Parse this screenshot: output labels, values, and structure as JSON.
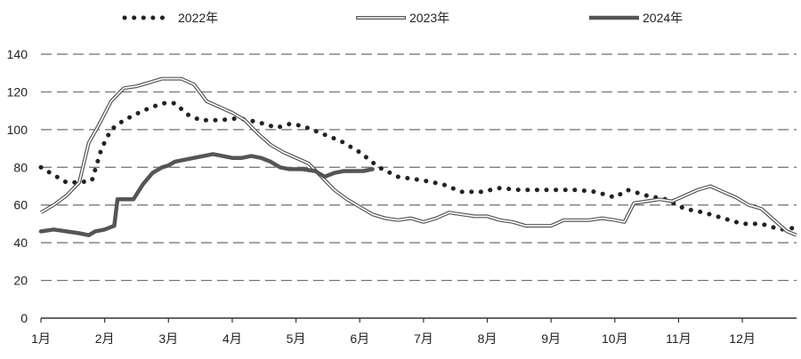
{
  "chart_data": {
    "type": "line",
    "ylim": [
      0,
      140
    ],
    "yticks": [
      "0",
      "20",
      "40",
      "60",
      "80",
      "100",
      "120",
      "140"
    ],
    "xlim": [
      1,
      12.85
    ],
    "xticks": [
      {
        "x": 1,
        "label": "1月"
      },
      {
        "x": 2,
        "label": "2月"
      },
      {
        "x": 3,
        "label": "3月"
      },
      {
        "x": 4,
        "label": "4月"
      },
      {
        "x": 5,
        "label": "5月"
      },
      {
        "x": 6,
        "label": "6月"
      },
      {
        "x": 7,
        "label": "7月"
      },
      {
        "x": 8,
        "label": "8月"
      },
      {
        "x": 9,
        "label": "9月"
      },
      {
        "x": 10,
        "label": "10月"
      },
      {
        "x": 11,
        "label": "11月"
      },
      {
        "x": 12,
        "label": "12月"
      }
    ],
    "grid": "horizontal-dashed",
    "legend_position": "top",
    "series": [
      {
        "name": "2022年",
        "style": "dotted",
        "color": "#222222",
        "x": [
          1.0,
          1.2,
          1.4,
          1.6,
          1.8,
          1.95,
          2.1,
          2.3,
          2.6,
          2.9,
          3.1,
          3.3,
          3.5,
          3.8,
          4.1,
          4.4,
          4.7,
          4.9,
          5.1,
          5.4,
          5.7,
          6.0,
          6.3,
          6.6,
          7.0,
          7.3,
          7.6,
          7.9,
          8.2,
          8.5,
          8.8,
          9.1,
          9.4,
          9.7,
          10.0,
          10.2,
          10.5,
          10.8,
          11.1,
          11.4,
          11.7,
          12.0,
          12.3,
          12.6,
          12.85
        ],
        "y": [
          80,
          76,
          72,
          72,
          73,
          90,
          100,
          105,
          110,
          114,
          114,
          108,
          105,
          105,
          106,
          104,
          101,
          103,
          102,
          98,
          94,
          88,
          80,
          75,
          73,
          71,
          67,
          67,
          69,
          68,
          68,
          68,
          68,
          67,
          64,
          68,
          65,
          63,
          58,
          56,
          53,
          50,
          50,
          47,
          48
        ]
      },
      {
        "name": "2023年",
        "style": "double",
        "color": "#555555",
        "x": [
          1.0,
          1.2,
          1.4,
          1.6,
          1.75,
          1.9,
          2.1,
          2.3,
          2.5,
          2.7,
          2.9,
          3.0,
          3.2,
          3.4,
          3.6,
          3.8,
          4.0,
          4.2,
          4.4,
          4.6,
          4.8,
          5.0,
          5.2,
          5.4,
          5.6,
          5.8,
          6.0,
          6.2,
          6.4,
          6.6,
          6.8,
          7.0,
          7.2,
          7.4,
          7.6,
          7.8,
          8.0,
          8.2,
          8.4,
          8.6,
          8.8,
          9.0,
          9.2,
          9.4,
          9.6,
          9.8,
          10.0,
          10.15,
          10.3,
          10.5,
          10.7,
          10.9,
          11.1,
          11.3,
          11.5,
          11.7,
          11.9,
          12.1,
          12.3,
          12.5,
          12.7,
          12.85
        ],
        "y": [
          56,
          60,
          65,
          72,
          93,
          102,
          115,
          122,
          123,
          125,
          127,
          127,
          127,
          124,
          115,
          112,
          109,
          105,
          98,
          92,
          88,
          85,
          82,
          75,
          68,
          63,
          59,
          55,
          53,
          52,
          53,
          51,
          53,
          56,
          55,
          54,
          54,
          52,
          51,
          49,
          49,
          49,
          52,
          52,
          52,
          53,
          52,
          51,
          61,
          62,
          63,
          62,
          65,
          68,
          70,
          67,
          64,
          60,
          58,
          52,
          46,
          44
        ]
      },
      {
        "name": "2024年",
        "style": "solid-thick",
        "color": "#555555",
        "x": [
          1.0,
          1.2,
          1.4,
          1.6,
          1.75,
          1.85,
          2.0,
          2.15,
          2.2,
          2.3,
          2.45,
          2.6,
          2.75,
          2.9,
          3.0,
          3.1,
          3.25,
          3.4,
          3.55,
          3.7,
          3.85,
          4.0,
          4.15,
          4.3,
          4.45,
          4.6,
          4.75,
          4.9,
          5.1,
          5.3,
          5.45,
          5.6,
          5.75,
          5.9,
          6.05,
          6.2
        ],
        "y": [
          46,
          47,
          46,
          45,
          44,
          46,
          47,
          49,
          63,
          63,
          63,
          71,
          77,
          80,
          81,
          83,
          84,
          85,
          86,
          87,
          86,
          85,
          85,
          86,
          85,
          83,
          80,
          79,
          79,
          78,
          75,
          77,
          78,
          78,
          78,
          79
        ]
      }
    ]
  }
}
